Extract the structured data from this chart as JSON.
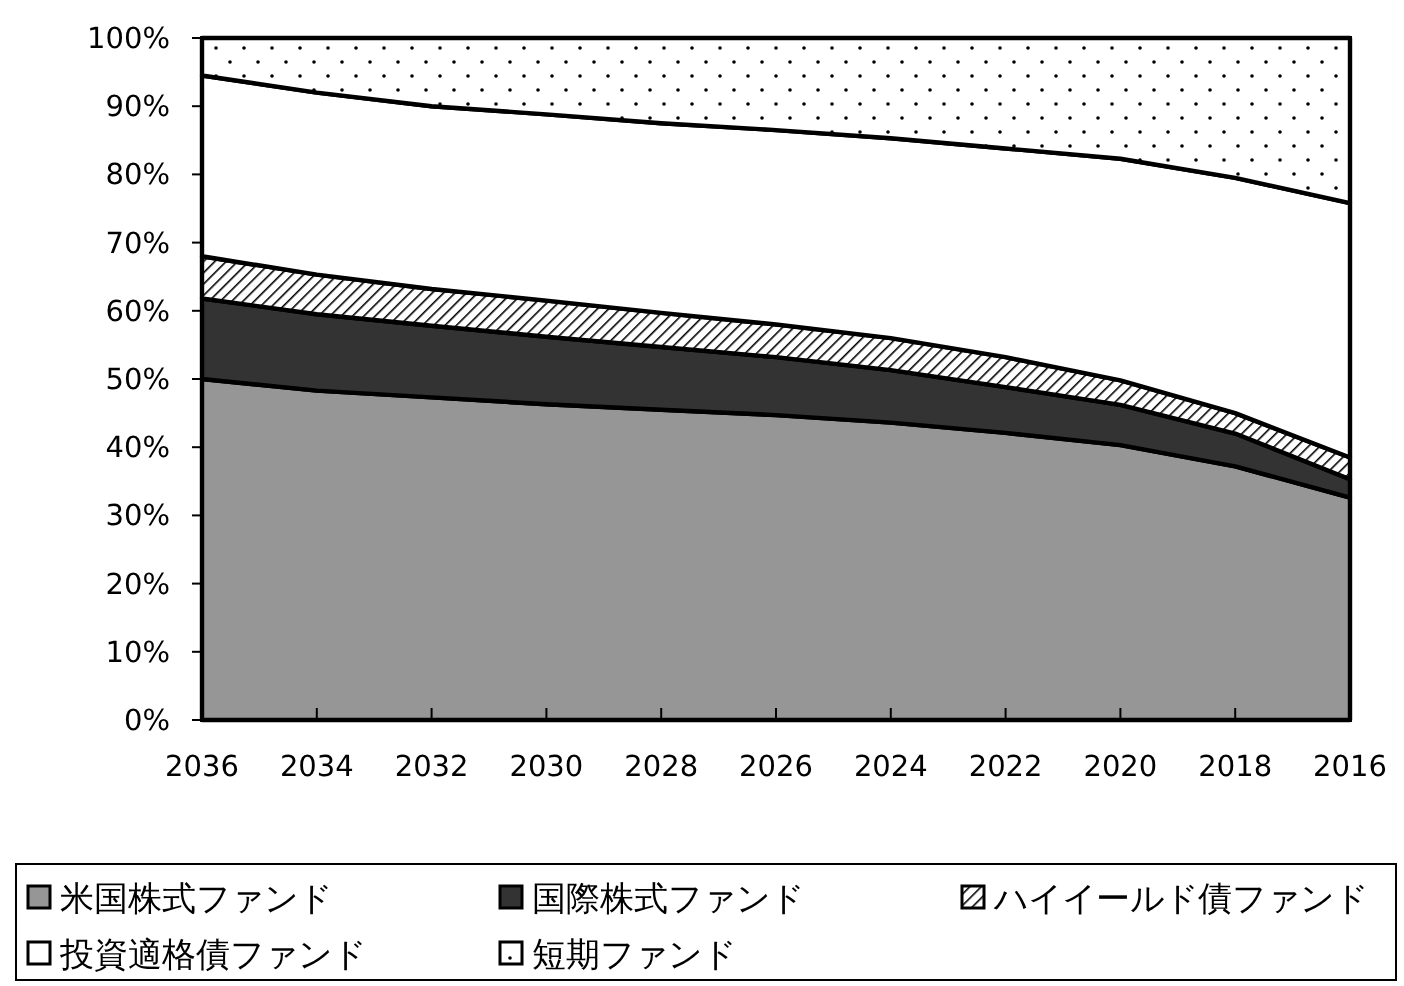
{
  "chart_data": {
    "type": "area",
    "stacked": true,
    "legend": "bottom",
    "grid": false,
    "categories": [
      "2036",
      "2034",
      "2032",
      "2030",
      "2028",
      "2026",
      "2024",
      "2022",
      "2020",
      "2018",
      "2016"
    ],
    "ylim": [
      0,
      100
    ],
    "yticks": [
      {
        "value": 0,
        "label": "0%"
      },
      {
        "value": 10,
        "label": "10%"
      },
      {
        "value": 20,
        "label": "20%"
      },
      {
        "value": 30,
        "label": "30%"
      },
      {
        "value": 40,
        "label": "40%"
      },
      {
        "value": 50,
        "label": "50%"
      },
      {
        "value": 60,
        "label": "60%"
      },
      {
        "value": 70,
        "label": "70%"
      },
      {
        "value": 80,
        "label": "80%"
      },
      {
        "value": 90,
        "label": "90%"
      },
      {
        "value": 100,
        "label": "100%"
      }
    ],
    "series": [
      {
        "name": "米国株式ファンド",
        "color": "#969696",
        "values": [
          50,
          48.3,
          47.3,
          46.3,
          45.5,
          44.7,
          43.6,
          42.1,
          40.3,
          37.2,
          32.6
        ]
      },
      {
        "name": "国際株式ファンド",
        "color": "#333333",
        "values": [
          11.8,
          11.2,
          10.5,
          9.9,
          9.2,
          8.5,
          7.7,
          6.7,
          5.9,
          4.8,
          2.7
        ]
      },
      {
        "name": "ハイイールド債ファンド",
        "color": "#000000",
        "values": [
          6.2,
          5.8,
          5.4,
          5.3,
          5.0,
          4.8,
          4.7,
          4.4,
          3.6,
          3.0,
          3.2
        ]
      },
      {
        "name": "投資適格債ファンド",
        "color": "#ffffff",
        "values": [
          26.5,
          26.7,
          26.8,
          27.3,
          27.8,
          28.5,
          29.3,
          30.6,
          32.5,
          34.5,
          37.3
        ]
      },
      {
        "name": "短期ファンド",
        "color": "#000000",
        "values": [
          5.5,
          8,
          10,
          11.2,
          12.5,
          13.5,
          14.7,
          16.2,
          17.7,
          20.5,
          24.2
        ]
      }
    ]
  }
}
